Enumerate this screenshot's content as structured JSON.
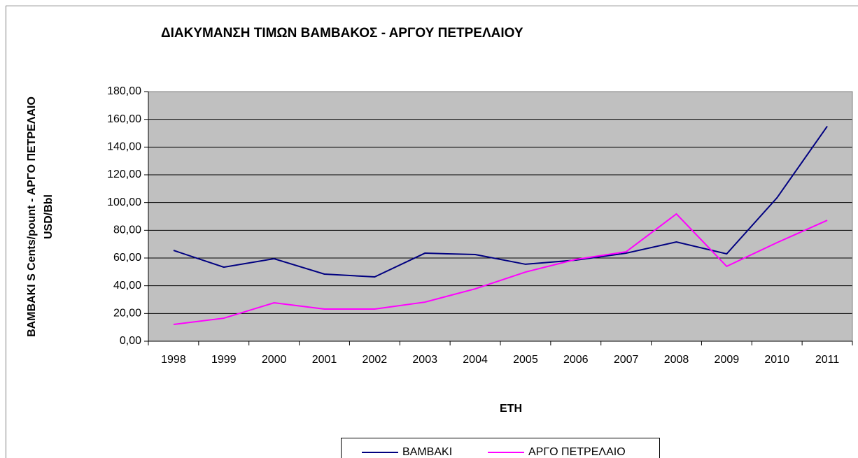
{
  "chart_data": {
    "type": "line",
    "title": "ΔΙΑΚΥΜΑΝΣΗ ΤΙΜΩΝ ΒΑΜΒΑΚΟΣ - ΑΡΓΟΥ ΠΕΤΡΕΛΑΙΟΥ",
    "xlabel": "ΕΤΗ",
    "ylabel": [
      "ΒΑΜΒΑΚΙ S Cents/pount - ΑΡΓΟ ΠΕΤΡΕΛΑΙΟ",
      "USD/Bbl"
    ],
    "categories": [
      "1998",
      "1999",
      "2000",
      "2001",
      "2002",
      "2003",
      "2004",
      "2005",
      "2006",
      "2007",
      "2008",
      "2009",
      "2010",
      "2011"
    ],
    "series": [
      {
        "name": "ΒΑΜΒΑΚΙ",
        "color": "#000080",
        "values": [
          65.5,
          53.4,
          59.5,
          48.4,
          46.4,
          63.5,
          62.5,
          55.5,
          58.5,
          63.5,
          71.6,
          63,
          103.4,
          155
        ]
      },
      {
        "name": "ΑΡΓΟ ΠΕΤΡΕΛΑΙΟ",
        "color": "#ff00ff",
        "values": [
          12.1,
          16.6,
          27.7,
          23.2,
          23.2,
          28.2,
          37.8,
          49.9,
          59,
          64.5,
          91.8,
          54,
          71.1,
          87.2
        ]
      }
    ],
    "ylim": [
      0,
      180
    ],
    "yticks": [
      {
        "value": 0,
        "label": "0,00"
      },
      {
        "value": 20,
        "label": "20,00"
      },
      {
        "value": 40,
        "label": "40,00"
      },
      {
        "value": 60,
        "label": "60,00"
      },
      {
        "value": 80,
        "label": "80,00"
      },
      {
        "value": 100,
        "label": "100,00"
      },
      {
        "value": 120,
        "label": "120,00"
      },
      {
        "value": 140,
        "label": "140,00"
      },
      {
        "value": 160,
        "label": "160,00"
      },
      {
        "value": 180,
        "label": "180,00"
      }
    ],
    "grid": true,
    "legend": "bottom",
    "plot_background": "#c0c0c0"
  }
}
